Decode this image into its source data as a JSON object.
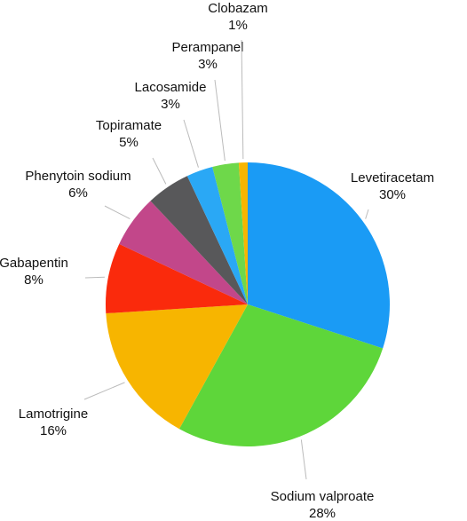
{
  "chart_data": {
    "type": "pie",
    "categories": [
      "Levetiracetam",
      "Sodium valproate",
      "Lamotrigine",
      "Gabapentin",
      "Phenytoin sodium",
      "Topiramate",
      "Lacosamide",
      "Perampanel",
      "Clobazam"
    ],
    "values": [
      30,
      28,
      16,
      8,
      6,
      5,
      3,
      3,
      1
    ],
    "value_labels": [
      "30%",
      "28%",
      "16%",
      "8%",
      "6%",
      "5%",
      "3%",
      "3%",
      "1%"
    ],
    "colors": [
      "#1a9bf5",
      "#5ed63a",
      "#f7b500",
      "#fa2a0c",
      "#c2478a",
      "#58585a",
      "#2aa8f5",
      "#6ed84a",
      "#f7b500"
    ]
  }
}
